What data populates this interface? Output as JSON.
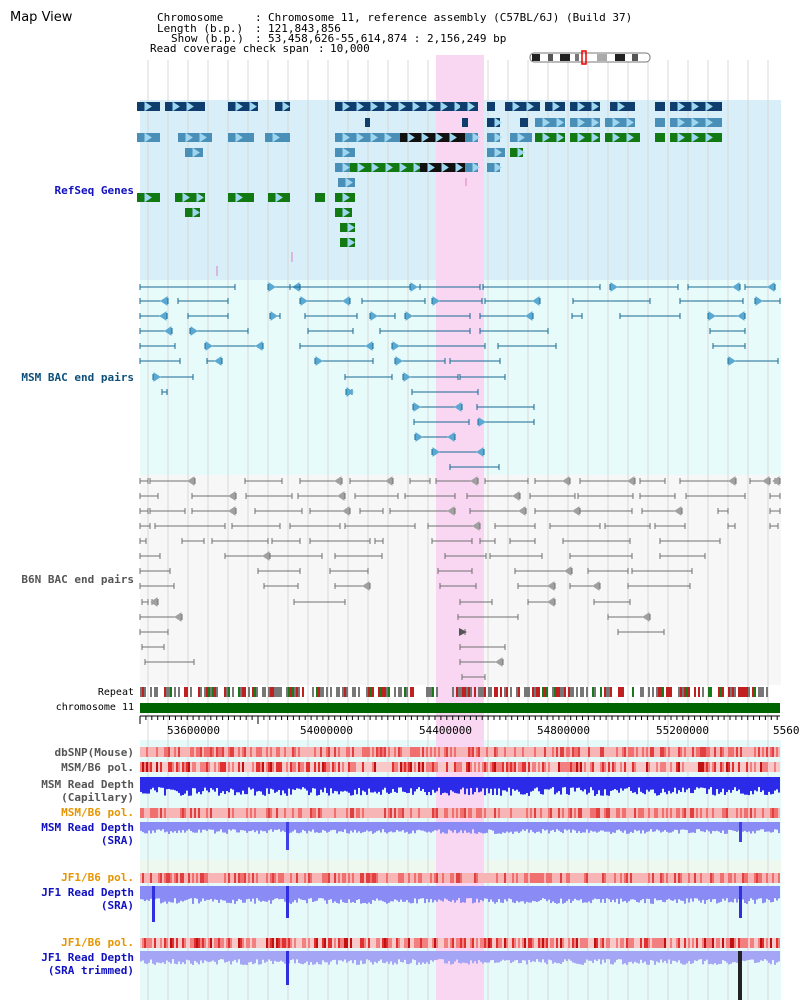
{
  "header": {
    "title": "Map View",
    "chromosome_label": "Chromosome",
    "chromosome_value": "Chromosome 11, reference assembly (C57BL/6J) (Build 37)",
    "length_label": "Length (b.p.)",
    "length_value": "121,843,856",
    "show_label": "Show (b.p.)",
    "show_value": "53,458,626-55,614,874 : 2,156,249 bp",
    "span_label": "Read coverage check span",
    "span_value": "10,000"
  },
  "tracks": {
    "refseq": "RefSeq Genes",
    "msm_bac": "MSM BAC end pairs",
    "b6n_bac": "B6N BAC end pairs",
    "repeat": "Repeat",
    "chromosome": "chromosome 11",
    "dbsnp": "dbSNP(Mouse)",
    "msm_b6_pol_1": "MSM/B6 pol.",
    "msm_read_depth_cap": "MSM Read Depth\n(Capillary)",
    "msm_b6_pol_2": "MSM/B6 pol.",
    "msm_read_depth_sra": "MSM Read Depth\n(SRA)",
    "jf1_b6_pol_1": "JF1/B6 pol.",
    "jf1_read_depth_sra": "JF1 Read Depth\n(SRA)",
    "jf1_b6_pol_2": "JF1/B6 pol.",
    "jf1_read_depth_trim": "JF1 Read Depth\n(SRA trimmed)"
  },
  "axis": {
    "ticks": [
      "53600000",
      "54000000",
      "54400000",
      "54800000",
      "55200000",
      "5560"
    ]
  },
  "colors": {
    "refseq_bg": "#d8eef8",
    "bac_bg": "#e8fbfb",
    "b6n_bg": "#f7f7f7",
    "highlight": "#f9d7f2",
    "navy": "#0e3d6e",
    "steel": "#4a8fb8",
    "green": "#137a13",
    "chromosome": "#006400",
    "depth_blue": "#1a1ae0",
    "depth_light": "#8b8bf5",
    "pol_red": "#f06b6b"
  }
}
